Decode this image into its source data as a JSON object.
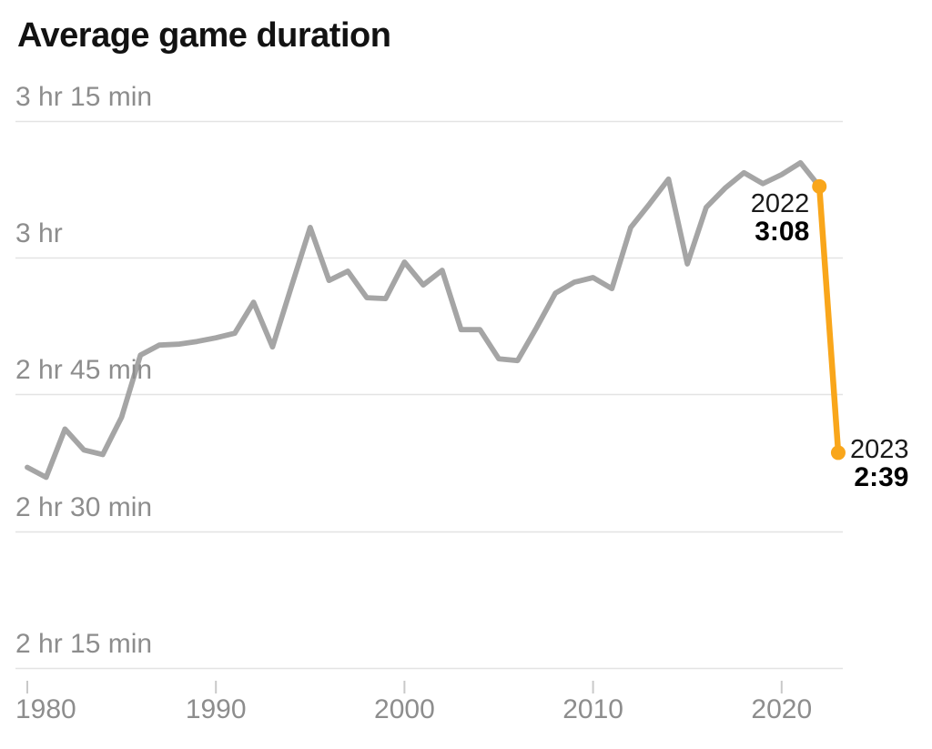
{
  "title": "Average game duration",
  "colors": {
    "line_gray": "#a5a5a5",
    "accent_orange": "#f9a61b",
    "gridline": "#e3e3e3",
    "tick": "#c9c9c9",
    "axis_text": "#8d8d8d",
    "title_text": "#121212",
    "annotation_year_text": "#1a1a1a",
    "annotation_value_text": "#000000"
  },
  "chart_data": {
    "type": "line",
    "title": "Average game duration",
    "xlabel": "",
    "ylabel": "",
    "grid": true,
    "legend": "none",
    "x": [
      1980,
      1981,
      1982,
      1983,
      1984,
      1985,
      1986,
      1987,
      1988,
      1989,
      1990,
      1991,
      1992,
      1993,
      1994,
      1995,
      1996,
      1997,
      1998,
      1999,
      2000,
      2001,
      2002,
      2003,
      2004,
      2005,
      2006,
      2007,
      2008,
      2009,
      2010,
      2011,
      2012,
      2013,
      2014,
      2015,
      2016,
      2017,
      2018,
      2019,
      2020,
      2021,
      2022,
      2023
    ],
    "series": [
      {
        "name": "Average game duration (minutes)",
        "values_minutes": [
          157.0,
          155.9,
          161.2,
          158.9,
          158.4,
          162.5,
          169.3,
          170.4,
          170.5,
          170.8,
          171.2,
          171.7,
          175.1,
          170.2,
          176.8,
          183.3,
          177.5,
          178.5,
          175.6,
          175.5,
          179.5,
          177.0,
          178.6,
          172.1,
          172.1,
          168.9,
          168.7,
          172.3,
          176.1,
          177.3,
          177.8,
          176.6,
          183.3,
          185.9,
          188.6,
          179.3,
          185.5,
          187.6,
          189.3,
          188.1,
          189.1,
          190.4,
          187.8,
          158.6
        ]
      }
    ],
    "highlight_segment": {
      "from_year": 2022,
      "to_year": 2023,
      "color": "#f9a61b"
    },
    "y_ticks": [
      {
        "label": "3 hr 15 min",
        "minutes": 195
      },
      {
        "label": "3 hr",
        "minutes": 180
      },
      {
        "label": "2 hr 45 min",
        "minutes": 165
      },
      {
        "label": "2 hr 30 min",
        "minutes": 150
      },
      {
        "label": "2 hr 15 min",
        "minutes": 135
      }
    ],
    "x_ticks": [
      {
        "label": "1980",
        "year": 1980
      },
      {
        "label": "1990",
        "year": 1990
      },
      {
        "label": "2000",
        "year": 2000
      },
      {
        "label": "2010",
        "year": 2010
      },
      {
        "label": "2020",
        "year": 2020
      }
    ],
    "ylim_minutes": [
      130,
      198
    ],
    "xlim_years": [
      1980,
      2023
    ],
    "annotations": [
      {
        "year": 2022,
        "label": "2022",
        "value_label": "3:08",
        "side": "left"
      },
      {
        "year": 2023,
        "label": "2023",
        "value_label": "2:39",
        "side": "right"
      }
    ]
  }
}
